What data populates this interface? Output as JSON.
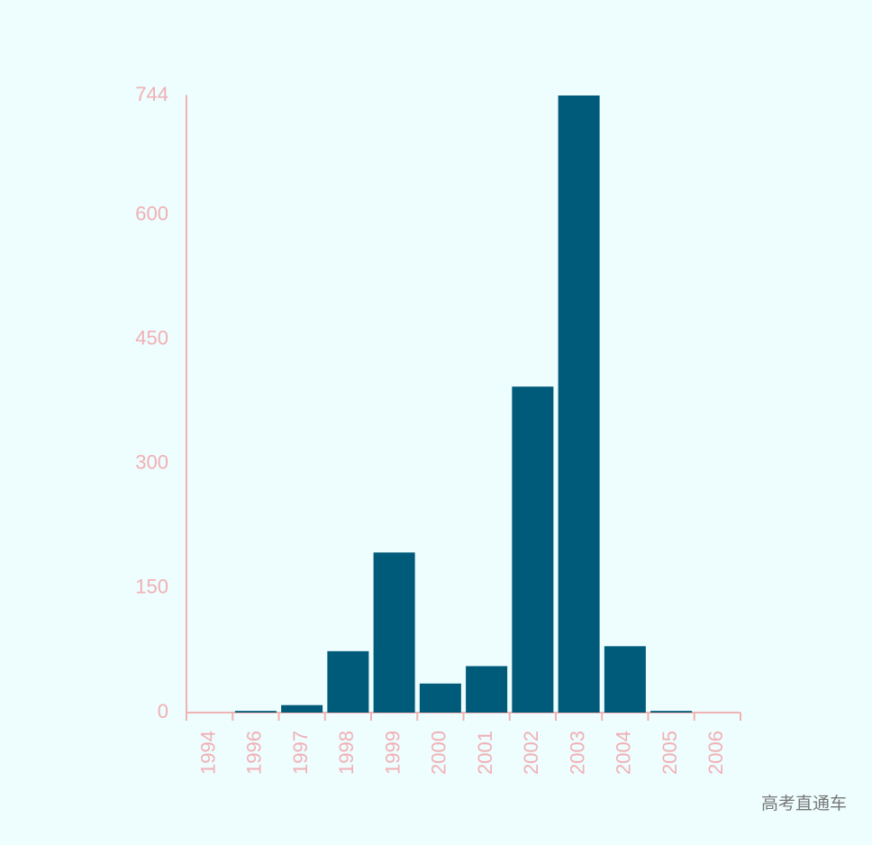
{
  "chart_data": {
    "type": "bar",
    "categories": [
      "1994",
      "1996",
      "1997",
      "1998",
      "1999",
      "2000",
      "2001",
      "2002",
      "2003",
      "2004",
      "2005",
      "2006"
    ],
    "values": [
      0,
      2,
      9,
      74,
      193,
      35,
      56,
      393,
      744,
      80,
      2,
      0
    ],
    "color": "#005a7a",
    "ylim": [
      0,
      744
    ],
    "yticks": [
      0,
      150,
      300,
      450,
      600,
      744
    ],
    "watermark": "高考直通车"
  }
}
